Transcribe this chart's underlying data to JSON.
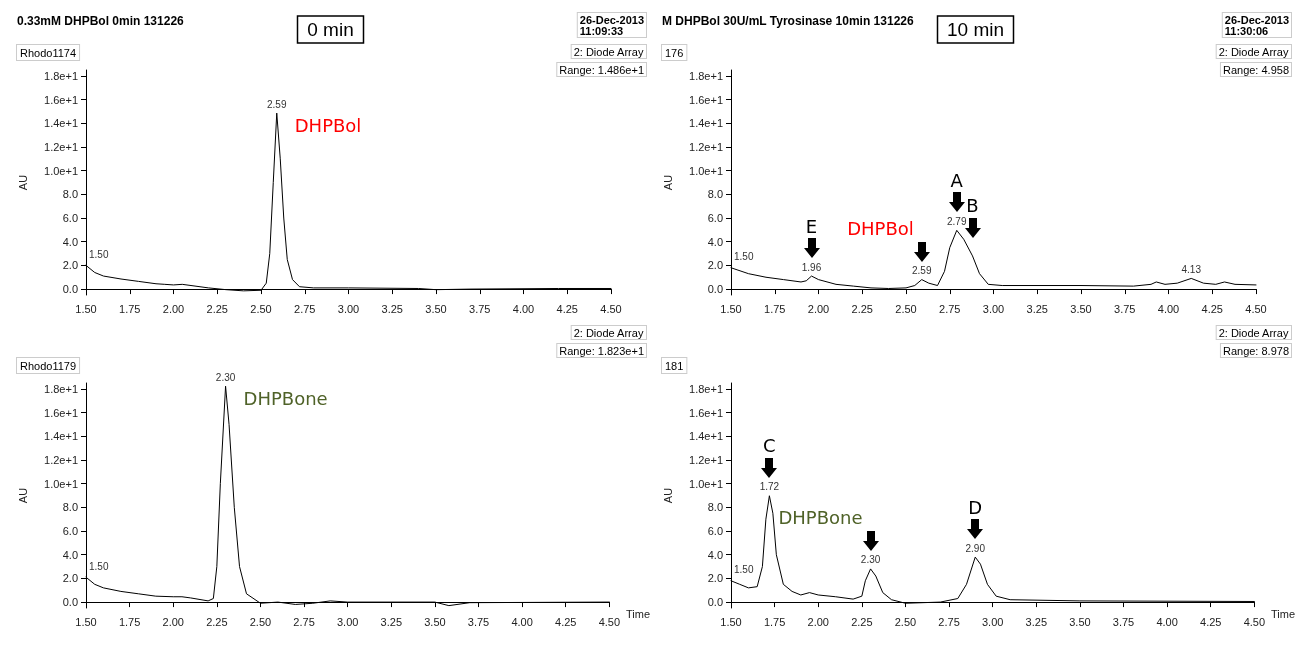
{
  "chart_data": [
    {
      "type": "line",
      "title": "0.33mM DHPBol 0min 131226",
      "subtitle": "0 min",
      "ylabel": "AU",
      "marker": "none",
      "line_style": "solid",
      "xlim": [
        1.5,
        4.5
      ],
      "ylim": [
        -0.5,
        18.5
      ],
      "xticks": [
        {
          "value": 1.5,
          "label": "1.50"
        },
        {
          "value": 1.75,
          "label": "1.75"
        },
        {
          "value": 2,
          "label": "2.00"
        },
        {
          "value": 2.25,
          "label": "2.25"
        },
        {
          "value": 2.5,
          "label": "2.50"
        },
        {
          "value": 2.75,
          "label": "2.75"
        },
        {
          "value": 3,
          "label": "3.00"
        },
        {
          "value": 3.25,
          "label": "3.25"
        },
        {
          "value": 3.5,
          "label": "3.50"
        },
        {
          "value": 3.75,
          "label": "3.75"
        },
        {
          "value": 4,
          "label": "4.00"
        },
        {
          "value": 4.25,
          "label": "4.25"
        },
        {
          "value": 4.5,
          "label": "4.50"
        }
      ],
      "yticks": [
        {
          "value": 0,
          "label": "0.0"
        },
        {
          "value": 2,
          "label": "2.0"
        },
        {
          "value": 4,
          "label": "4.0"
        },
        {
          "value": 6,
          "label": "6.0"
        },
        {
          "value": 8,
          "label": "8.0"
        },
        {
          "value": 10,
          "label": "1.0e+1"
        },
        {
          "value": 12,
          "label": "1.2e+1"
        },
        {
          "value": 14,
          "label": "1.4e+1"
        },
        {
          "value": 16,
          "label": "1.6e+1"
        },
        {
          "value": 18,
          "label": "1.8e+1"
        }
      ],
      "x": [
        1.5,
        1.55,
        1.6,
        1.7,
        1.8,
        1.9,
        1.95,
        2.0,
        2.05,
        2.1,
        2.2,
        2.3,
        2.4,
        2.5,
        2.53,
        2.55,
        2.57,
        2.59,
        2.61,
        2.63,
        2.65,
        2.68,
        2.72,
        2.8,
        3.0,
        3.4,
        3.5,
        3.7,
        4.2,
        4.5
      ],
      "values": [
        2.0,
        1.4,
        1.1,
        0.85,
        0.65,
        0.45,
        0.4,
        0.35,
        0.4,
        0.3,
        0.1,
        -0.05,
        -0.15,
        -0.1,
        0.5,
        3,
        9,
        14.86,
        11,
        6,
        2.5,
        0.8,
        0.2,
        0.1,
        0.1,
        0.05,
        -0.05,
        0,
        0.05,
        0.05
      ],
      "color": "#000000",
      "annotations": [
        "Rhodo1174",
        "26-Dec-2013\n11:09:33",
        "2: Diode Array",
        "Range: 1.486e+1",
        {
          "text": "1.50",
          "x": 1.5,
          "y": 2.0
        },
        {
          "text": "2.59",
          "x": 2.59,
          "y": 14.86
        },
        {
          "text": "DHPBol",
          "x": 2.59,
          "y": 14.86
        }
      ]
    },
    {
      "type": "line",
      "title": "M DHPBol 30U/mL Tyrosinase 10min 131226",
      "subtitle": "10 min",
      "ylabel": "AU",
      "marker": "none",
      "line_style": "solid",
      "xlim": [
        1.5,
        4.5
      ],
      "ylim": [
        -0.5,
        18.5
      ],
      "xticks": [
        {
          "value": 1.5,
          "label": "1.50"
        },
        {
          "value": 1.75,
          "label": "1.75"
        },
        {
          "value": 2,
          "label": "2.00"
        },
        {
          "value": 2.25,
          "label": "2.25"
        },
        {
          "value": 2.5,
          "label": "2.50"
        },
        {
          "value": 2.75,
          "label": "2.75"
        },
        {
          "value": 3,
          "label": "3.00"
        },
        {
          "value": 3.25,
          "label": "3.25"
        },
        {
          "value": 3.5,
          "label": "3.50"
        },
        {
          "value": 3.75,
          "label": "3.75"
        },
        {
          "value": 4,
          "label": "4.00"
        },
        {
          "value": 4.25,
          "label": "4.25"
        },
        {
          "value": 4.5,
          "label": "4.50"
        }
      ],
      "yticks": [
        {
          "value": 0,
          "label": "0.0"
        },
        {
          "value": 2,
          "label": "2.0"
        },
        {
          "value": 4,
          "label": "4.0"
        },
        {
          "value": 6,
          "label": "6.0"
        },
        {
          "value": 8,
          "label": "8.0"
        },
        {
          "value": 10,
          "label": "1.0e+1"
        },
        {
          "value": 12,
          "label": "1.2e+1"
        },
        {
          "value": 14,
          "label": "1.4e+1"
        },
        {
          "value": 16,
          "label": "1.6e+1"
        },
        {
          "value": 18,
          "label": "1.8e+1"
        }
      ],
      "x": [
        1.5,
        1.6,
        1.7,
        1.8,
        1.9,
        1.93,
        1.96,
        2.0,
        2.1,
        2.2,
        2.3,
        2.4,
        2.5,
        2.55,
        2.59,
        2.63,
        2.68,
        2.72,
        2.75,
        2.79,
        2.83,
        2.88,
        2.92,
        2.97,
        3.05,
        3.5,
        3.8,
        3.9,
        3.93,
        3.98,
        4.05,
        4.13,
        4.2,
        4.27,
        4.32,
        4.38,
        4.5
      ],
      "values": [
        1.8,
        1.3,
        1.0,
        0.8,
        0.6,
        0.7,
        1.1,
        0.8,
        0.4,
        0.25,
        0.1,
        0.05,
        0.1,
        0.3,
        0.8,
        0.5,
        0.3,
        1.5,
        3.5,
        4.96,
        4.2,
        2.8,
        1.3,
        0.4,
        0.3,
        0.3,
        0.25,
        0.4,
        0.6,
        0.4,
        0.5,
        0.9,
        0.5,
        0.4,
        0.6,
        0.4,
        0.35
      ],
      "color": "#000000",
      "annotations": [
        "176",
        "26-Dec-2013\n11:30:06",
        "2: Diode Array",
        "Range: 4.958",
        {
          "text": "1.50",
          "x": 1.5,
          "y": 1.8
        },
        {
          "text": "1.96",
          "x": 1.96,
          "y": 1.1
        },
        {
          "text": "2.59",
          "x": 2.59,
          "y": 0.8
        },
        {
          "text": "2.79",
          "x": 2.79,
          "y": 4.96
        },
        {
          "text": "4.13",
          "x": 4.13,
          "y": 0.9
        },
        {
          "text": "DHPBol",
          "x": 2.59,
          "y": 0.8
        },
        {
          "text": "E",
          "x": 1.96,
          "y": 1.1
        },
        {
          "text": "A",
          "x": 2.79,
          "y": 4.96
        },
        {
          "text": "B",
          "x": 2.88,
          "y": 2.8
        }
      ]
    },
    {
      "type": "line",
      "xlabel": "Time",
      "ylabel": "AU",
      "marker": "none",
      "line_style": "solid",
      "xlim": [
        1.5,
        4.5
      ],
      "ylim": [
        -0.5,
        18.5
      ],
      "xticks": [
        {
          "value": 1.5,
          "label": "1.50"
        },
        {
          "value": 1.75,
          "label": "1.75"
        },
        {
          "value": 2,
          "label": "2.00"
        },
        {
          "value": 2.25,
          "label": "2.25"
        },
        {
          "value": 2.5,
          "label": "2.50"
        },
        {
          "value": 2.75,
          "label": "2.75"
        },
        {
          "value": 3,
          "label": "3.00"
        },
        {
          "value": 3.25,
          "label": "3.25"
        },
        {
          "value": 3.5,
          "label": "3.50"
        },
        {
          "value": 3.75,
          "label": "3.75"
        },
        {
          "value": 4,
          "label": "4.00"
        },
        {
          "value": 4.25,
          "label": "4.25"
        },
        {
          "value": 4.5,
          "label": "4.50"
        }
      ],
      "yticks": [
        {
          "value": 0,
          "label": "0.0"
        },
        {
          "value": 2,
          "label": "2.0"
        },
        {
          "value": 4,
          "label": "4.0"
        },
        {
          "value": 6,
          "label": "6.0"
        },
        {
          "value": 8,
          "label": "8.0"
        },
        {
          "value": 10,
          "label": "1.0e+1"
        },
        {
          "value": 12,
          "label": "1.2e+1"
        },
        {
          "value": 14,
          "label": "1.4e+1"
        },
        {
          "value": 16,
          "label": "1.6e+1"
        },
        {
          "value": 18,
          "label": "1.8e+1"
        }
      ],
      "x": [
        1.5,
        1.55,
        1.6,
        1.7,
        1.8,
        1.9,
        2.0,
        2.05,
        2.1,
        2.2,
        2.23,
        2.25,
        2.27,
        2.3,
        2.32,
        2.35,
        2.38,
        2.42,
        2.5,
        2.6,
        2.7,
        2.8,
        2.9,
        3.0,
        3.5,
        3.58,
        3.7,
        4.5
      ],
      "values": [
        2.1,
        1.5,
        1.2,
        0.9,
        0.7,
        0.5,
        0.45,
        0.45,
        0.35,
        0.1,
        0.3,
        3,
        10,
        18.23,
        15,
        8,
        3,
        0.7,
        -0.1,
        0,
        -0.2,
        -0.1,
        0.1,
        0,
        0,
        -0.3,
        -0.05,
        0
      ],
      "color": "#000000",
      "annotations": [
        "Rhodo1179",
        "2: Diode Array",
        "Range: 1.823e+1",
        {
          "text": "1.50",
          "x": 1.5,
          "y": 2.1
        },
        {
          "text": "2.30",
          "x": 2.3,
          "y": 18.23
        },
        {
          "text": "DHPBone",
          "x": 2.3,
          "y": 18.23
        }
      ]
    },
    {
      "type": "line",
      "xlabel": "Time",
      "ylabel": "AU",
      "marker": "none",
      "line_style": "solid",
      "xlim": [
        1.5,
        4.5
      ],
      "ylim": [
        -0.5,
        18.5
      ],
      "xticks": [
        {
          "value": 1.5,
          "label": "1.50"
        },
        {
          "value": 1.75,
          "label": "1.75"
        },
        {
          "value": 2,
          "label": "2.00"
        },
        {
          "value": 2.25,
          "label": "2.25"
        },
        {
          "value": 2.5,
          "label": "2.50"
        },
        {
          "value": 2.75,
          "label": "2.75"
        },
        {
          "value": 3,
          "label": "3.00"
        },
        {
          "value": 3.25,
          "label": "3.25"
        },
        {
          "value": 3.5,
          "label": "3.50"
        },
        {
          "value": 3.75,
          "label": "3.75"
        },
        {
          "value": 4,
          "label": "4.00"
        },
        {
          "value": 4.25,
          "label": "4.25"
        },
        {
          "value": 4.5,
          "label": "4.50"
        }
      ],
      "yticks": [
        {
          "value": 0,
          "label": "0.0"
        },
        {
          "value": 2,
          "label": "2.0"
        },
        {
          "value": 4,
          "label": "4.0"
        },
        {
          "value": 6,
          "label": "6.0"
        },
        {
          "value": 8,
          "label": "8.0"
        },
        {
          "value": 10,
          "label": "1.0e+1"
        },
        {
          "value": 12,
          "label": "1.2e+1"
        },
        {
          "value": 14,
          "label": "1.4e+1"
        },
        {
          "value": 16,
          "label": "1.6e+1"
        },
        {
          "value": 18,
          "label": "1.8e+1"
        }
      ],
      "x": [
        1.5,
        1.55,
        1.6,
        1.65,
        1.68,
        1.7,
        1.72,
        1.74,
        1.76,
        1.8,
        1.85,
        1.9,
        1.95,
        2.0,
        2.1,
        2.2,
        2.25,
        2.27,
        2.3,
        2.33,
        2.37,
        2.42,
        2.5,
        2.7,
        2.8,
        2.85,
        2.9,
        2.93,
        2.97,
        3.02,
        3.1,
        3.5,
        4.5
      ],
      "values": [
        1.8,
        1.5,
        1.2,
        1.3,
        3,
        7,
        8.978,
        7.5,
        4,
        1.5,
        0.9,
        0.6,
        0.8,
        0.6,
        0.45,
        0.25,
        0.5,
        1.8,
        2.8,
        2.2,
        0.8,
        0.2,
        -0.1,
        0,
        0.3,
        1.5,
        3.8,
        3.2,
        1.5,
        0.5,
        0.2,
        0.1,
        0.05
      ],
      "color": "#000000",
      "annotations": [
        "181",
        "2: Diode Array",
        "Range: 8.978",
        {
          "text": "1.50",
          "x": 1.5,
          "y": 1.8
        },
        {
          "text": "1.72",
          "x": 1.72,
          "y": 8.978
        },
        {
          "text": "2.30",
          "x": 2.3,
          "y": 2.8
        },
        {
          "text": "2.90",
          "x": 2.9,
          "y": 3.8
        },
        {
          "text": "DHPBone",
          "x": 2.3,
          "y": 2.8
        },
        {
          "text": "C",
          "x": 1.72,
          "y": 8.978
        },
        {
          "text": "D",
          "x": 2.9,
          "y": 3.8
        }
      ]
    }
  ]
}
